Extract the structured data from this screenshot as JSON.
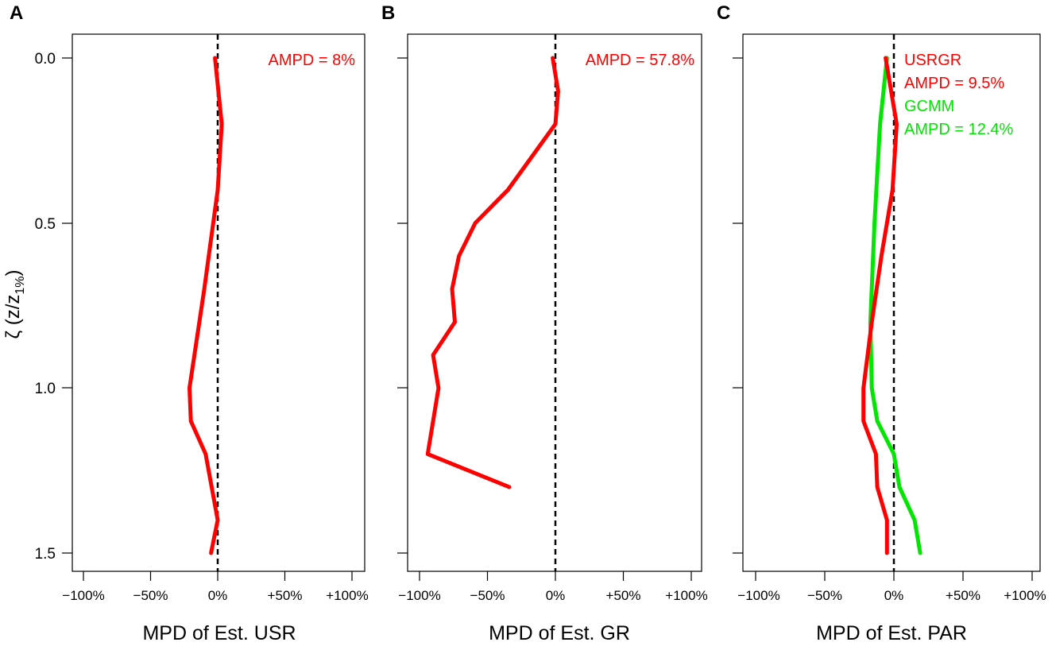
{
  "figure": {
    "ylabel_main": "ζ (z/z",
    "ylabel_sub": "1%",
    "ylabel_close": ")",
    "yticks": [
      "0.0",
      "0.5",
      "1.0",
      "1.5"
    ],
    "ytick_values": [
      0.0,
      0.5,
      1.0,
      1.5
    ],
    "xticks": [
      "−100%",
      "−50%",
      "0%",
      "+50%",
      "+100%"
    ],
    "xtick_values": [
      -100,
      -50,
      0,
      50,
      100
    ]
  },
  "chart_data": [
    {
      "type": "line",
      "panel": "A",
      "xlabel": "MPD of Est. USR",
      "ylabel": "ζ (z/z1%)",
      "xlim": [
        -100,
        100
      ],
      "ylim": [
        1.5,
        0.0
      ],
      "reference_line_x": 0,
      "series": [
        {
          "color": "#ff0000",
          "points": [
            {
              "x": -2,
              "y": 0.0
            },
            {
              "x": 3,
              "y": 0.2
            },
            {
              "x": 0,
              "y": 0.4
            },
            {
              "x": -10,
              "y": 0.7
            },
            {
              "x": -21,
              "y": 1.0
            },
            {
              "x": -20,
              "y": 1.1
            },
            {
              "x": -9,
              "y": 1.2
            },
            {
              "x": 0,
              "y": 1.4
            },
            {
              "x": -5,
              "y": 1.5
            }
          ]
        }
      ],
      "annotations": [
        {
          "text": "AMPD = 8%",
          "color": "#ff0000"
        }
      ]
    },
    {
      "type": "line",
      "panel": "B",
      "xlabel": "MPD of Est. GR",
      "ylabel": "",
      "xlim": [
        -100,
        100
      ],
      "ylim": [
        1.5,
        0.0
      ],
      "reference_line_x": 0,
      "series": [
        {
          "color": "#ff0000",
          "points": [
            {
              "x": -2,
              "y": 0.0
            },
            {
              "x": 2,
              "y": 0.1
            },
            {
              "x": 0,
              "y": 0.2
            },
            {
              "x": -35,
              "y": 0.4
            },
            {
              "x": -59,
              "y": 0.5
            },
            {
              "x": -71,
              "y": 0.6
            },
            {
              "x": -76,
              "y": 0.7
            },
            {
              "x": -74,
              "y": 0.8
            },
            {
              "x": -90,
              "y": 0.9
            },
            {
              "x": -86,
              "y": 1.0
            },
            {
              "x": -94,
              "y": 1.2
            },
            {
              "x": -34,
              "y": 1.3
            }
          ]
        }
      ],
      "annotations": [
        {
          "text": "AMPD = 57.8%",
          "color": "#ff0000"
        }
      ]
    },
    {
      "type": "line",
      "panel": "C",
      "xlabel": "MPD of Est. PAR",
      "ylabel": "",
      "xlim": [
        -100,
        100
      ],
      "ylim": [
        1.5,
        0.0
      ],
      "reference_line_x": 0,
      "series": [
        {
          "name": "USRGR",
          "color": "#ff0000",
          "points": [
            {
              "x": -6,
              "y": 0.0
            },
            {
              "x": 2,
              "y": 0.2
            },
            {
              "x": -1,
              "y": 0.4
            },
            {
              "x": -9,
              "y": 0.6
            },
            {
              "x": -16,
              "y": 0.8
            },
            {
              "x": -22,
              "y": 1.0
            },
            {
              "x": -22,
              "y": 1.1
            },
            {
              "x": -13,
              "y": 1.2
            },
            {
              "x": -12,
              "y": 1.3
            },
            {
              "x": -5,
              "y": 1.4
            },
            {
              "x": -5,
              "y": 1.5
            }
          ]
        },
        {
          "name": "GCMM",
          "color": "#00e600",
          "points": [
            {
              "x": -5,
              "y": 0.0
            },
            {
              "x": -10,
              "y": 0.2
            },
            {
              "x": -14,
              "y": 0.5
            },
            {
              "x": -17,
              "y": 0.8
            },
            {
              "x": -16,
              "y": 1.0
            },
            {
              "x": -12,
              "y": 1.1
            },
            {
              "x": 0,
              "y": 1.2
            },
            {
              "x": 4,
              "y": 1.3
            },
            {
              "x": 15,
              "y": 1.4
            },
            {
              "x": 19,
              "y": 1.5
            }
          ]
        }
      ],
      "annotations": [
        {
          "text": "USRGR",
          "color": "#ff0000"
        },
        {
          "text": "AMPD = 9.5%",
          "color": "#ff0000"
        },
        {
          "text": "GCMM",
          "color": "#00e600"
        },
        {
          "text": "AMPD = 12.4%",
          "color": "#00e600"
        }
      ]
    }
  ]
}
